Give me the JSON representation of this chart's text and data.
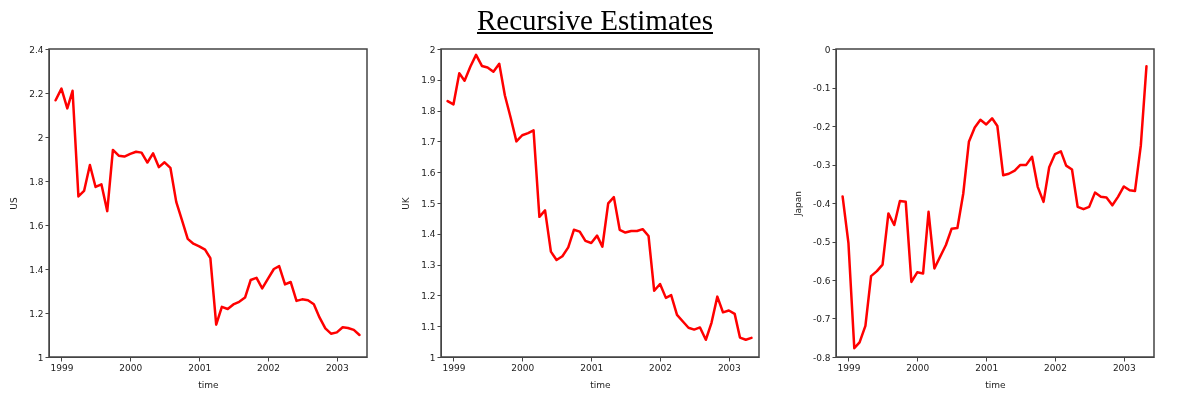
{
  "chart_data": [
    {
      "type": "line",
      "xlabel": "time",
      "ylabel": "US",
      "x": [
        "1998-12",
        "1999-01",
        "1999-02",
        "1999-03",
        "1999-04",
        "1999-05",
        "1999-06",
        "1999-07",
        "1999-08",
        "1999-09",
        "1999-10",
        "1999-11",
        "1999-12",
        "2000-01",
        "2000-02",
        "2000-03",
        "2000-04",
        "2000-05",
        "2000-06",
        "2000-07",
        "2000-08",
        "2000-09",
        "2000-10",
        "2000-11",
        "2000-12",
        "2001-01",
        "2001-02",
        "2001-03",
        "2001-04",
        "2001-05",
        "2001-06",
        "2001-07",
        "2001-08",
        "2001-09",
        "2001-10",
        "2001-11",
        "2001-12",
        "2002-01",
        "2002-02",
        "2002-03",
        "2002-04",
        "2002-05",
        "2002-06",
        "2002-07",
        "2002-08",
        "2002-09",
        "2002-10",
        "2002-11",
        "2002-12",
        "2003-01",
        "2003-02",
        "2003-03",
        "2003-04",
        "2003-05"
      ],
      "series": [
        {
          "color": "#ff0000",
          "values": [
            2.167,
            2.22,
            2.13,
            2.21,
            1.73,
            1.755,
            1.873,
            1.773,
            1.785,
            1.663,
            1.941,
            1.915,
            1.911,
            1.923,
            1.933,
            1.929,
            1.884,
            1.926,
            1.863,
            1.885,
            1.86,
            1.705,
            1.623,
            1.537,
            1.515,
            1.503,
            1.488,
            1.449,
            1.147,
            1.228,
            1.218,
            1.239,
            1.251,
            1.27,
            1.35,
            1.36,
            1.312,
            1.356,
            1.4,
            1.413,
            1.33,
            1.341,
            1.255,
            1.262,
            1.258,
            1.24,
            1.18,
            1.13,
            1.106,
            1.112,
            1.135,
            1.132,
            1.123,
            1.1
          ]
        }
      ],
      "xlim": [
        "1998-10-27",
        "2003-06-10"
      ],
      "xticks": [
        "1999",
        "2000",
        "2001",
        "2002",
        "2003"
      ],
      "ylim": [
        1,
        2.4
      ],
      "yticks": [
        1,
        1.2,
        1.4,
        1.6,
        1.8,
        2,
        2.2,
        2.4
      ]
    },
    {
      "type": "line",
      "title": "Recursive Estimates",
      "xlabel": "time",
      "ylabel": "UK",
      "x": [
        "1998-12",
        "1999-01",
        "1999-02",
        "1999-03",
        "1999-04",
        "1999-05",
        "1999-06",
        "1999-07",
        "1999-08",
        "1999-09",
        "1999-10",
        "1999-11",
        "1999-12",
        "2000-01",
        "2000-02",
        "2000-03",
        "2000-04",
        "2000-05",
        "2000-06",
        "2000-07",
        "2000-08",
        "2000-09",
        "2000-10",
        "2000-11",
        "2000-12",
        "2001-01",
        "2001-02",
        "2001-03",
        "2001-04",
        "2001-05",
        "2001-06",
        "2001-07",
        "2001-08",
        "2001-09",
        "2001-10",
        "2001-11",
        "2001-12",
        "2002-01",
        "2002-02",
        "2002-03",
        "2002-04",
        "2002-05",
        "2002-06",
        "2002-07",
        "2002-08",
        "2002-09",
        "2002-10",
        "2002-11",
        "2002-12",
        "2003-01",
        "2003-02",
        "2003-03",
        "2003-04",
        "2003-05"
      ],
      "series": [
        {
          "color": "#ff0000",
          "values": [
            1.831,
            1.82,
            1.921,
            1.897,
            1.943,
            1.981,
            1.945,
            1.94,
            1.926,
            1.952,
            1.849,
            1.776,
            1.7,
            1.72,
            1.727,
            1.736,
            1.455,
            1.476,
            1.342,
            1.315,
            1.327,
            1.356,
            1.413,
            1.407,
            1.377,
            1.37,
            1.394,
            1.358,
            1.499,
            1.519,
            1.413,
            1.404,
            1.409,
            1.409,
            1.415,
            1.393,
            1.215,
            1.237,
            1.192,
            1.201,
            1.137,
            1.116,
            1.095,
            1.089,
            1.096,
            1.056,
            1.111,
            1.196,
            1.145,
            1.151,
            1.14,
            1.063,
            1.056,
            1.062
          ]
        }
      ],
      "xlim": [
        "1998-10-27",
        "2003-06-10"
      ],
      "xticks": [
        "1999",
        "2000",
        "2001",
        "2002",
        "2003"
      ],
      "ylim": [
        1,
        2
      ],
      "yticks": [
        1,
        1.1,
        1.2,
        1.3,
        1.4,
        1.5,
        1.6,
        1.7,
        1.8,
        1.9,
        2
      ]
    },
    {
      "type": "line",
      "xlabel": "time",
      "ylabel": "Japan",
      "x": [
        "1998-12",
        "1999-01",
        "1999-02",
        "1999-03",
        "1999-04",
        "1999-05",
        "1999-06",
        "1999-07",
        "1999-08",
        "1999-09",
        "1999-10",
        "1999-11",
        "1999-12",
        "2000-01",
        "2000-02",
        "2000-03",
        "2000-04",
        "2000-05",
        "2000-06",
        "2000-07",
        "2000-08",
        "2000-09",
        "2000-10",
        "2000-11",
        "2000-12",
        "2001-01",
        "2001-02",
        "2001-03",
        "2001-04",
        "2001-05",
        "2001-06",
        "2001-07",
        "2001-08",
        "2001-09",
        "2001-10",
        "2001-11",
        "2001-12",
        "2002-01",
        "2002-02",
        "2002-03",
        "2002-04",
        "2002-05",
        "2002-06",
        "2002-07",
        "2002-08",
        "2002-09",
        "2002-10",
        "2002-11",
        "2002-12",
        "2003-01",
        "2003-02",
        "2003-03",
        "2003-04",
        "2003-05"
      ],
      "series": [
        {
          "color": "#ff0000",
          "values": [
            -0.383,
            -0.504,
            -0.777,
            -0.762,
            -0.719,
            -0.59,
            -0.577,
            -0.56,
            -0.427,
            -0.457,
            -0.395,
            -0.397,
            -0.605,
            -0.58,
            -0.583,
            -0.423,
            -0.57,
            -0.54,
            -0.509,
            -0.467,
            -0.465,
            -0.376,
            -0.241,
            -0.204,
            -0.184,
            -0.196,
            -0.18,
            -0.2,
            -0.328,
            -0.324,
            -0.316,
            -0.301,
            -0.301,
            -0.28,
            -0.358,
            -0.397,
            -0.307,
            -0.273,
            -0.266,
            -0.303,
            -0.313,
            -0.41,
            -0.416,
            -0.41,
            -0.373,
            -0.384,
            -0.386,
            -0.406,
            -0.384,
            -0.357,
            -0.367,
            -0.369,
            -0.251,
            -0.045
          ]
        }
      ],
      "xlim": [
        "1998-10-27",
        "2003-06-10"
      ],
      "xticks": [
        "1999",
        "2000",
        "2001",
        "2002",
        "2003"
      ],
      "ylim": [
        -0.8,
        0
      ],
      "yticks": [
        -0.8,
        -0.7,
        -0.6,
        -0.5,
        -0.4,
        -0.3,
        -0.2,
        -0.1,
        0
      ]
    }
  ]
}
